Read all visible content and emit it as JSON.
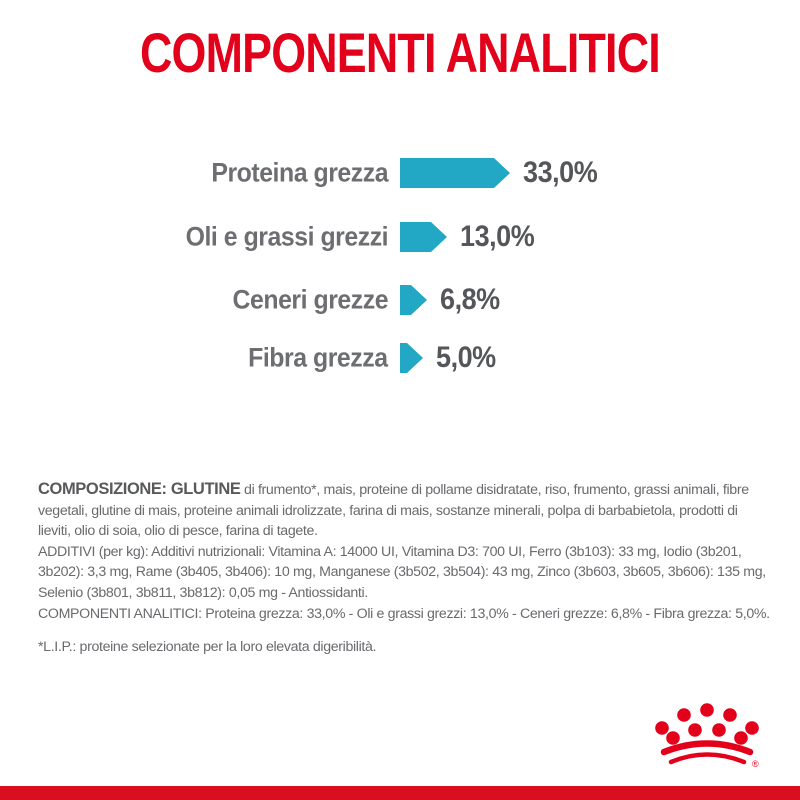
{
  "title": "COMPONENTI ANALITICI",
  "colors": {
    "red": "#E2001A",
    "red-bar": "#D90E1E",
    "teal": "#22A8C4",
    "label-gray": "#6D6E71",
    "value-gray": "#55565A",
    "body-gray": "#696A6D",
    "lead-gray": "#58595B"
  },
  "chart_data": {
    "type": "bar",
    "orientation": "horizontal",
    "title": "COMPONENTI ANALITICI",
    "unit": "%",
    "categories": [
      "Proteina grezza",
      "Oli e grassi grezzi",
      "Ceneri grezze",
      "Fibra grezza"
    ],
    "values": [
      33.0,
      13.0,
      6.8,
      5.0
    ],
    "value_labels": [
      "33,0%",
      "13,0%",
      "6,8%",
      "5,0%"
    ],
    "bar_color": "#22A8C4",
    "bar_shape": "right-arrow",
    "bar_pixel_widths": [
      110,
      47,
      27,
      23
    ],
    "legend": false,
    "grid": false,
    "axes_hidden": true
  },
  "composition": {
    "lead_bold": "COMPOSIZIONE: GLUTINE",
    "text": " di frumento*, mais, proteine di pollame disidratate, riso, frumento, grassi animali, fibre vegetali, glutine di mais, proteine animali idrolizzate, farina di mais, sostanze minerali, polpa di barbabietola, prodotti di lieviti, olio di soia, olio di pesce, farina di tagete."
  },
  "additives": "ADDITIVI (per kg): Additivi nutrizionali: Vitamina A: 14000 UI, Vitamina D3: 700 UI, Ferro (3b103): 33 mg, Iodio (3b201, 3b202): 3,3 mg, Rame (3b405, 3b406): 10 mg, Manganese (3b502, 3b504): 43 mg, Zinco (3b603, 3b605, 3b606): 135 mg, Selenio (3b801, 3b811, 3b812): 0,05 mg - Antiossidanti.",
  "analytical_summary": "COMPONENTI ANALITICI: Proteina grezza: 33,0% - Oli e grassi grezzi: 13,0% - Ceneri grezze: 6,8% - Fibra grezza: 5,0%.",
  "lip_note": "*L.I.P.: proteine selezionate per la loro elevata digeribilità.",
  "logo": {
    "name": "royal-canin-crown",
    "registered_mark": "®"
  }
}
